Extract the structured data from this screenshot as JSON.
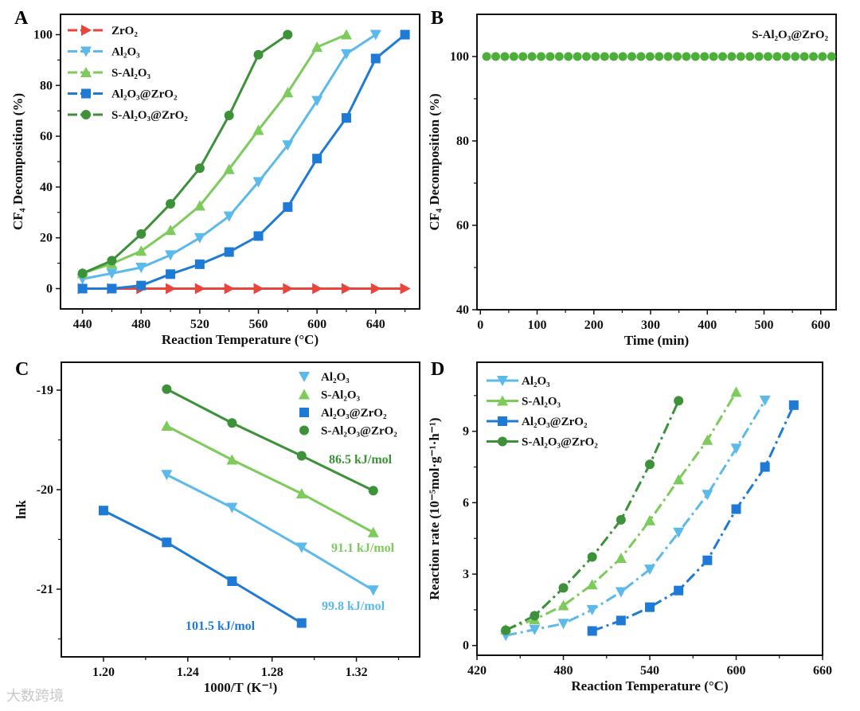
{
  "watermark": "大数跨境",
  "colors": {
    "ZrO2": "#e8453c",
    "Al2O3": "#5cb9ec",
    "S-Al2O3": "#7ccb5b",
    "Al2O3@ZrO2": "#1f7ad6",
    "S-Al2O3@ZrO2": "#3c9139",
    "B": "#4caf3a"
  },
  "chart_data": [
    {
      "panel": "A",
      "type": "line",
      "xlabel": "Reaction Temperature (°C)",
      "ylabel": "CF₄ Decomposition (%)",
      "xlim": [
        425,
        670
      ],
      "ylim": [
        -8,
        108
      ],
      "xticks": [
        440,
        480,
        520,
        560,
        600,
        640
      ],
      "yticks": [
        0,
        20,
        40,
        60,
        80,
        100
      ],
      "legend": "top-left",
      "line_style": "solid",
      "series": [
        {
          "key": "ZrO2",
          "name": "ZrO₂",
          "marker": "triangle-right",
          "x": [
            440,
            460,
            480,
            500,
            520,
            540,
            560,
            580,
            600,
            620,
            640,
            660
          ],
          "y": [
            0,
            0,
            0,
            0,
            0,
            0,
            0,
            0,
            0,
            0,
            0,
            0
          ]
        },
        {
          "key": "Al2O3",
          "name": "Al₂O₃",
          "marker": "triangle-down",
          "x": [
            440,
            460,
            480,
            500,
            520,
            540,
            560,
            580,
            600,
            620,
            640
          ],
          "y": [
            3.8,
            6,
            8.3,
            13.2,
            20,
            28.5,
            42,
            56.5,
            74,
            92.4,
            100
          ]
        },
        {
          "key": "S-Al2O3",
          "name": "S-Al₂O₃",
          "marker": "triangle-up",
          "x": [
            440,
            460,
            480,
            500,
            520,
            540,
            560,
            580,
            600,
            620
          ],
          "y": [
            6,
            9.8,
            14.8,
            23,
            32.6,
            47,
            62.4,
            77.2,
            95.1,
            100
          ]
        },
        {
          "key": "Al2O3@ZrO2",
          "name": "Al₂O₃@ZrO₂",
          "marker": "square",
          "x": [
            440,
            460,
            480,
            500,
            520,
            540,
            560,
            580,
            600,
            620,
            640,
            660
          ],
          "y": [
            0,
            0,
            1.2,
            5.7,
            9.6,
            14.4,
            20.7,
            32.1,
            51.2,
            67.2,
            90.6,
            100
          ]
        },
        {
          "key": "S-Al2O3@ZrO2",
          "name": "S-Al₂O₃@ZrO₂",
          "marker": "circle",
          "x": [
            440,
            460,
            480,
            500,
            520,
            540,
            560,
            580
          ],
          "y": [
            6,
            11,
            21.5,
            33.4,
            47.4,
            68.2,
            92.1,
            100
          ]
        }
      ]
    },
    {
      "panel": "B",
      "type": "scatter",
      "xlabel": "Time (min)",
      "ylabel": "CF₄ Decomposition (%)",
      "xlim": [
        -6,
        627
      ],
      "ylim": [
        40,
        110
      ],
      "xticks": [
        0,
        100,
        200,
        300,
        400,
        500,
        600
      ],
      "yticks": [
        40,
        60,
        80,
        100
      ],
      "legend": "top-right",
      "series": [
        {
          "key": "B",
          "name": "S-Al₂O₃@ZrO₂",
          "marker": "circle",
          "x": [
            11,
            27,
            43,
            59,
            75,
            91,
            107,
            123,
            139,
            155,
            171,
            187,
            203,
            219,
            235,
            251,
            267,
            283,
            299,
            315,
            331,
            347,
            363,
            379,
            395,
            411,
            427,
            443,
            459,
            475,
            491,
            507,
            523,
            539,
            555,
            571,
            587,
            603,
            619
          ],
          "y": [
            100,
            100,
            100,
            100,
            100,
            100,
            100,
            100,
            100,
            100,
            100,
            100,
            100,
            100,
            100,
            100,
            100,
            100,
            100,
            100,
            100,
            100,
            100,
            100,
            100,
            100,
            100,
            100,
            100,
            100,
            100,
            100,
            100,
            100,
            100,
            100,
            100,
            100,
            100
          ]
        }
      ]
    },
    {
      "panel": "C",
      "type": "line",
      "xlabel": "1000/T (K⁻¹)",
      "ylabel": "lnk",
      "xlim": [
        1.18,
        1.35
      ],
      "ylim": [
        -21.68,
        -18.72
      ],
      "xticks": [
        1.2,
        1.24,
        1.28,
        1.32
      ],
      "yticks": [
        -21,
        -20,
        -19
      ],
      "legend": "top-right",
      "line_style": "solid",
      "series": [
        {
          "key": "Al2O3",
          "name": "Al₂O₃",
          "marker": "triangle-down",
          "x": [
            1.23,
            1.261,
            1.294,
            1.328
          ],
          "y": [
            -19.85,
            -20.18,
            -20.58,
            -21.01
          ]
        },
        {
          "key": "S-Al2O3",
          "name": "S-Al₂O₃",
          "marker": "triangle-up",
          "x": [
            1.23,
            1.261,
            1.294,
            1.328
          ],
          "y": [
            -19.36,
            -19.7,
            -20.04,
            -20.43
          ]
        },
        {
          "key": "Al2O3@ZrO2",
          "name": "Al₂O₃@ZrO₂",
          "marker": "square",
          "x": [
            1.2,
            1.23,
            1.261,
            1.294
          ],
          "y": [
            -20.21,
            -20.53,
            -20.92,
            -21.34
          ]
        },
        {
          "key": "S-Al2O3@ZrO2",
          "name": "S-Al₂O₃@ZrO₂",
          "marker": "circle",
          "x": [
            1.23,
            1.261,
            1.294,
            1.328
          ],
          "y": [
            -18.99,
            -19.33,
            -19.66,
            -20.01
          ]
        }
      ],
      "annotations": [
        {
          "key": "S-Al2O3@ZrO2",
          "text": "86.5 kJ/mol"
        },
        {
          "key": "S-Al2O3",
          "text": "91.1 kJ/mol"
        },
        {
          "key": "Al2O3",
          "text": "99.8 kJ/mol"
        },
        {
          "key": "Al2O3@ZrO2",
          "text": "101.5 kJ/mol"
        }
      ]
    },
    {
      "panel": "D",
      "type": "line",
      "xlabel": "Reaction Temperature (°C)",
      "ylabel": "Reaction rate (10⁻⁵mol·g⁻¹·h⁻¹)",
      "xlim": [
        420,
        660
      ],
      "ylim": [
        -0.41,
        11.9
      ],
      "xticks": [
        420,
        480,
        540,
        600,
        660
      ],
      "yticks": [
        0,
        3,
        6,
        9
      ],
      "legend": "top-left",
      "line_style": "dash-dot",
      "series": [
        {
          "key": "Al2O3",
          "name": "Al₂O₃",
          "marker": "triangle-down",
          "x": [
            440,
            460,
            480,
            500,
            520,
            540,
            560,
            580,
            600,
            620
          ],
          "y": [
            0.42,
            0.67,
            0.92,
            1.5,
            2.25,
            3.2,
            4.75,
            6.34,
            8.28,
            10.3
          ]
        },
        {
          "key": "S-Al2O3",
          "name": "S-Al₂O₃",
          "marker": "triangle-up",
          "x": [
            440,
            460,
            480,
            500,
            520,
            540,
            560,
            580,
            600
          ],
          "y": [
            0.67,
            1.09,
            1.68,
            2.56,
            3.67,
            5.25,
            6.97,
            8.63,
            10.65
          ]
        },
        {
          "key": "Al2O3@ZrO2",
          "name": "Al₂O₃@ZrO₂",
          "marker": "square",
          "x": [
            500,
            520,
            540,
            560,
            580,
            600,
            620,
            640
          ],
          "y": [
            0.61,
            1.05,
            1.61,
            2.31,
            3.58,
            5.73,
            7.5,
            10.1
          ]
        },
        {
          "key": "S-Al2O3@ZrO2",
          "name": "S-Al₂O₃@ZrO₂",
          "marker": "circle",
          "x": [
            440,
            460,
            480,
            500,
            520,
            540,
            560
          ],
          "y": [
            0.64,
            1.25,
            2.42,
            3.72,
            5.28,
            7.61,
            10.28
          ]
        }
      ]
    }
  ]
}
